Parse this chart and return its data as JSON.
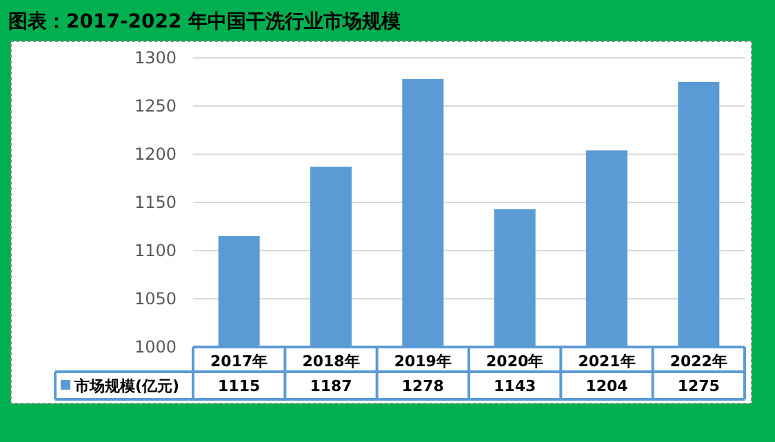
{
  "chart_data": {
    "type": "bar",
    "title": "图表：2017-2022 年中国干洗行业市场规模",
    "categories": [
      "2017年",
      "2018年",
      "2019年",
      "2020年",
      "2021年",
      "2022年"
    ],
    "series": [
      {
        "name": "市场规模(亿元)",
        "color": "#5b9bd5",
        "values": [
          1115,
          1187,
          1278,
          1143,
          1204,
          1275
        ]
      }
    ],
    "ylim": [
      1000,
      1300
    ],
    "yticks": [
      1000,
      1050,
      1100,
      1150,
      1200,
      1250,
      1300
    ],
    "grid": "y",
    "data_labels": true,
    "legend": "bottom"
  }
}
